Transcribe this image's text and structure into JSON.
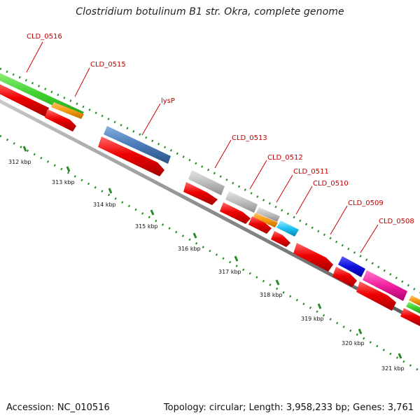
{
  "title": "Clostridium botulinum B1 str. Okra, complete genome",
  "footer": {
    "accession": "Accession: NC_010516",
    "summary": "Topology: circular; Length: 3,958,233 bp; Genes: 3,761"
  },
  "ticks": [
    "312 kbp",
    "313 kbp",
    "314 kbp",
    "315 kbp",
    "316 kbp",
    "317 kbp",
    "318 kbp",
    "319 kbp",
    "320 kbp",
    "321 kbp"
  ],
  "gene_labels": [
    "CLD_0516",
    "CLD_0515",
    "lysP",
    "CLD_0513",
    "CLD_0512",
    "CLD_0511",
    "CLD_0510",
    "CLD_0509",
    "CLD_0508"
  ],
  "colors": {
    "cds": "#ee0000",
    "label": "#c00000",
    "tick_dots": "#2a8a2a",
    "backbone": "#8a8a8a"
  }
}
